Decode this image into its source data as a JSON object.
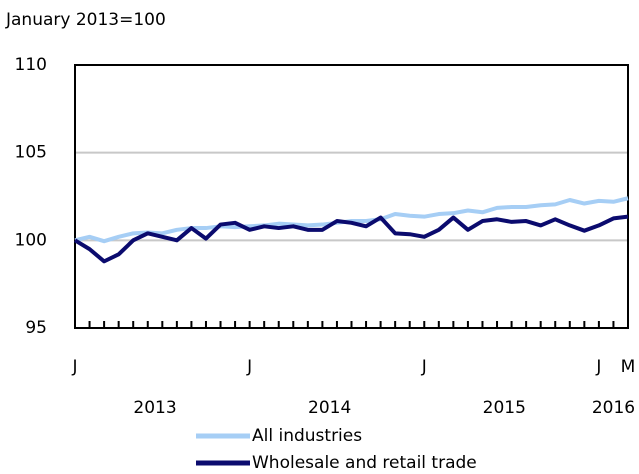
{
  "chart_data": {
    "type": "line",
    "ylabel": "January 2013=100",
    "categories": [
      "J",
      null,
      null,
      null,
      null,
      null,
      null,
      null,
      null,
      null,
      null,
      null,
      "J",
      null,
      null,
      null,
      null,
      null,
      null,
      null,
      null,
      null,
      null,
      null,
      "J",
      null,
      null,
      null,
      null,
      null,
      null,
      null,
      null,
      null,
      null,
      null,
      "J",
      null,
      "M"
    ],
    "x_group_labels": [
      "2013",
      "2014",
      "2015",
      "2016"
    ],
    "series": [
      {
        "name": "All industries",
        "color": "#a6cef5",
        "values": [
          100,
          100.2,
          99.95,
          100.2,
          100.4,
          100.45,
          100.4,
          100.6,
          100.7,
          100.7,
          100.8,
          100.75,
          100.8,
          100.85,
          100.95,
          100.9,
          100.85,
          100.9,
          101.0,
          101.1,
          101.1,
          101.2,
          101.5,
          101.4,
          101.35,
          101.5,
          101.55,
          101.7,
          101.6,
          101.85,
          101.9,
          101.9,
          102.0,
          102.05,
          102.3,
          102.1,
          102.25,
          102.2,
          102.4
        ]
      },
      {
        "name": "Wholesale and retail trade",
        "color": "#0b0b6e",
        "values": [
          100,
          99.5,
          98.8,
          99.2,
          100,
          100.4,
          100.2,
          100,
          100.7,
          100.1,
          100.9,
          101,
          100.6,
          100.8,
          100.7,
          100.8,
          100.6,
          100.6,
          101.1,
          101,
          100.8,
          101.3,
          100.4,
          100.35,
          100.2,
          100.6,
          101.3,
          100.6,
          101.1,
          101.2,
          101.05,
          101.1,
          100.85,
          101.2,
          100.85,
          100.55,
          100.85,
          101.25,
          101.35
        ]
      }
    ],
    "ylim": [
      95,
      110
    ],
    "yticks": [
      95,
      100,
      105,
      110
    ],
    "grid": true
  }
}
